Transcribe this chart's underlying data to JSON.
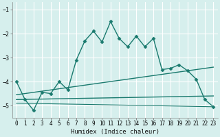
{
  "xlabel": "Humidex (Indice chaleur)",
  "bg_color": "#d6efed",
  "line_color": "#1a7a6e",
  "grid_color": "#ffffff",
  "xlim": [
    -0.5,
    23.5
  ],
  "ylim": [
    -5.5,
    -0.7
  ],
  "yticks": [
    -5,
    -4,
    -3,
    -2,
    -1
  ],
  "xticks": [
    0,
    1,
    2,
    3,
    4,
    5,
    6,
    7,
    8,
    9,
    10,
    11,
    12,
    13,
    14,
    15,
    16,
    17,
    18,
    19,
    20,
    21,
    22,
    23
  ],
  "line1_x": [
    0,
    1,
    2,
    3,
    4,
    5,
    6,
    7,
    8,
    9,
    10,
    11,
    12,
    13,
    14,
    15,
    16,
    17,
    18,
    19,
    20,
    21,
    22,
    23
  ],
  "line1_y": [
    -4.0,
    -4.75,
    -5.2,
    -4.45,
    -4.5,
    -4.0,
    -4.35,
    -3.1,
    -2.3,
    -1.9,
    -2.35,
    -1.5,
    -2.2,
    -2.55,
    -2.1,
    -2.55,
    -2.2,
    -3.5,
    -3.45,
    -3.3,
    -3.55,
    -3.9,
    -4.75,
    -5.05
  ],
  "line2_x": [
    0,
    23
  ],
  "line2_y": [
    -4.55,
    -3.4
  ],
  "line3_x": [
    0,
    23
  ],
  "line3_y": [
    -4.75,
    -4.6
  ],
  "line4_x": [
    0,
    23
  ],
  "line4_y": [
    -4.9,
    -5.05
  ]
}
